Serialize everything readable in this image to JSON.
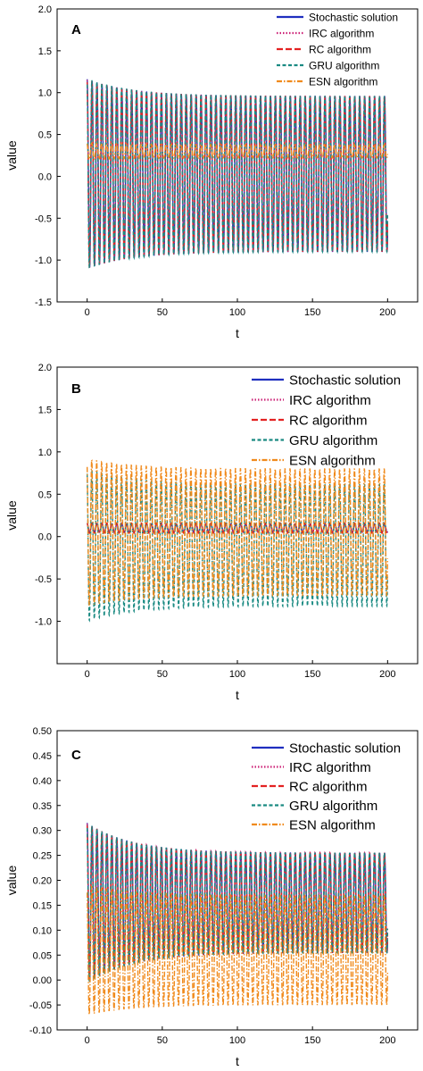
{
  "chart_data": [
    {
      "panel": "A",
      "type": "line",
      "xlabel": "t",
      "ylabel": "value",
      "xlim": [
        -20,
        220
      ],
      "ylim": [
        -1.5,
        2.0
      ],
      "xticks": [
        0,
        50,
        100,
        150,
        200
      ],
      "yticks": [
        -1.5,
        -1.0,
        -0.5,
        0.0,
        0.5,
        1.0,
        1.5,
        2.0
      ],
      "ytick_labels": [
        "-1.5",
        "-1.0",
        "-0.5",
        "0.0",
        "0.5",
        "1.0",
        "1.5",
        "2.0"
      ],
      "legend_position": "top-right",
      "series": [
        {
          "name": "Stochastic solution",
          "color": "#1f2fbf",
          "dash": "solid",
          "t": [
            0,
            200
          ],
          "center": 0.03,
          "amp_start": 1.13,
          "amp_end": 0.93,
          "period": 3.3
        },
        {
          "name": "IRC algorithm",
          "color": "#cc2277",
          "dash": "dotted",
          "t": [
            0,
            200
          ],
          "center": 0.03,
          "amp_start": 1.13,
          "amp_end": 0.93,
          "period": 3.3
        },
        {
          "name": "RC algorithm",
          "color": "#e32222",
          "dash": "dashed",
          "t": [
            0,
            200
          ],
          "center": 0.03,
          "amp_start": 1.13,
          "amp_end": 0.93,
          "period": 3.3
        },
        {
          "name": "GRU algorithm",
          "color": "#1a8a82",
          "dash": "dashed-short",
          "t": [
            0,
            200
          ],
          "center": 0.03,
          "amp_start": 1.14,
          "amp_end": 0.93,
          "period": 3.3
        },
        {
          "name": "ESN algorithm",
          "color": "#f08a1c",
          "dash": "dashdot",
          "t": [
            0,
            200
          ],
          "center": 0.3,
          "amp_start": 0.1,
          "amp_end": 0.08,
          "period": 3.3
        }
      ]
    },
    {
      "panel": "B",
      "type": "line",
      "xlabel": "t",
      "ylabel": "value",
      "xlim": [
        -20,
        220
      ],
      "ylim": [
        -1.5,
        2.0
      ],
      "xticks": [
        0,
        50,
        100,
        150,
        200
      ],
      "yticks": [
        -1.0,
        -0.5,
        0.0,
        0.5,
        1.0,
        1.5,
        2.0
      ],
      "ytick_labels": [
        "-1.0",
        "-0.5",
        "0.0",
        "0.5",
        "1.0",
        "1.5",
        "2.0"
      ],
      "legend_position": "top-right",
      "series": [
        {
          "name": "Stochastic solution",
          "color": "#1f2fbf",
          "dash": "solid",
          "t": [
            0,
            200
          ],
          "center": 0.1,
          "amp_start": 0.05,
          "amp_end": 0.05,
          "period": 3.3
        },
        {
          "name": "IRC algorithm",
          "color": "#cc2277",
          "dash": "dotted",
          "t": [
            0,
            200
          ],
          "center": 0.1,
          "amp_start": 0.06,
          "amp_end": 0.05,
          "period": 3.3
        },
        {
          "name": "RC algorithm",
          "color": "#e32222",
          "dash": "dashed",
          "t": [
            0,
            200
          ],
          "center": 0.1,
          "amp_start": 0.06,
          "amp_end": 0.06,
          "period": 3.3
        },
        {
          "name": "GRU algorithm",
          "color": "#1a8a82",
          "dash": "dashed-short",
          "t": [
            0,
            200
          ],
          "center": -0.1,
          "amp_start": 0.9,
          "amp_end": 0.72,
          "period": 3.3
        },
        {
          "name": "ESN algorithm",
          "color": "#f08a1c",
          "dash": "dashdot",
          "t": [
            0,
            200
          ],
          "center": 0.05,
          "amp_start": 0.87,
          "amp_end": 0.75,
          "period": 3.3
        }
      ]
    },
    {
      "panel": "C",
      "type": "line",
      "xlabel": "t",
      "ylabel": "value",
      "xlim": [
        -20,
        220
      ],
      "ylim": [
        -0.1,
        0.5
      ],
      "xticks": [
        0,
        50,
        100,
        150,
        200
      ],
      "yticks": [
        -0.1,
        -0.05,
        0.0,
        0.05,
        0.1,
        0.15,
        0.2,
        0.25,
        0.3,
        0.35,
        0.4,
        0.45,
        0.5
      ],
      "ytick_labels": [
        "-0.10",
        "-0.05",
        "0.00",
        "0.05",
        "0.10",
        "0.15",
        "0.20",
        "0.25",
        "0.30",
        "0.35",
        "0.40",
        "0.45",
        "0.50"
      ],
      "legend_position": "top-right",
      "series": [
        {
          "name": "Stochastic solution",
          "color": "#1f2fbf",
          "dash": "solid",
          "t": [
            0,
            200
          ],
          "center": 0.155,
          "amp_start": 0.16,
          "amp_end": 0.1,
          "period": 3.3
        },
        {
          "name": "IRC algorithm",
          "color": "#cc2277",
          "dash": "dotted",
          "t": [
            0,
            200
          ],
          "center": 0.155,
          "amp_start": 0.16,
          "amp_end": 0.1,
          "period": 3.3
        },
        {
          "name": "RC algorithm",
          "color": "#e32222",
          "dash": "dashed",
          "t": [
            0,
            200
          ],
          "center": 0.155,
          "amp_start": 0.16,
          "amp_end": 0.1,
          "period": 3.3
        },
        {
          "name": "GRU algorithm",
          "color": "#1a8a82",
          "dash": "dashed-short",
          "t": [
            0,
            200
          ],
          "center": 0.155,
          "amp_start": 0.16,
          "amp_end": 0.1,
          "period": 3.3
        },
        {
          "name": "ESN algorithm",
          "color": "#f08a1c",
          "dash": "dashdot",
          "t": [
            0,
            200
          ],
          "center": 0.06,
          "amp_start": 0.13,
          "amp_end": 0.11,
          "period": 3.3
        }
      ]
    }
  ]
}
